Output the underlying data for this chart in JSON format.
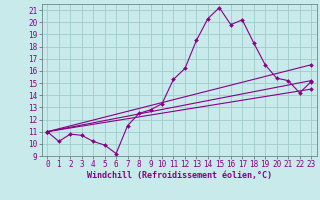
{
  "title": "",
  "xlabel": "Windchill (Refroidissement éolien,°C)",
  "xlim": [
    -0.5,
    23.5
  ],
  "ylim": [
    9,
    21.5
  ],
  "xticks": [
    0,
    1,
    2,
    3,
    4,
    5,
    6,
    7,
    8,
    9,
    10,
    11,
    12,
    13,
    14,
    15,
    16,
    17,
    18,
    19,
    20,
    21,
    22,
    23
  ],
  "yticks": [
    9,
    10,
    11,
    12,
    13,
    14,
    15,
    16,
    17,
    18,
    19,
    20,
    21
  ],
  "bg_color": "#c8eaea",
  "grid_color": "#a0cccc",
  "line_color": "#880088",
  "main_series": [
    [
      0,
      11.0
    ],
    [
      1,
      10.2
    ],
    [
      2,
      10.8
    ],
    [
      3,
      10.7
    ],
    [
      4,
      10.2
    ],
    [
      5,
      9.9
    ],
    [
      6,
      9.2
    ],
    [
      7,
      11.5
    ],
    [
      8,
      12.5
    ],
    [
      9,
      12.8
    ],
    [
      10,
      13.3
    ],
    [
      11,
      15.3
    ],
    [
      12,
      16.2
    ],
    [
      13,
      18.5
    ],
    [
      14,
      20.3
    ],
    [
      15,
      21.2
    ],
    [
      16,
      19.8
    ],
    [
      17,
      20.2
    ],
    [
      18,
      18.3
    ],
    [
      19,
      16.5
    ],
    [
      20,
      15.4
    ],
    [
      21,
      15.2
    ],
    [
      22,
      14.2
    ],
    [
      23,
      15.1
    ]
  ],
  "straight_lines": [
    [
      [
        0,
        11.0
      ],
      [
        23,
        16.5
      ]
    ],
    [
      [
        0,
        11.0
      ],
      [
        23,
        15.2
      ]
    ],
    [
      [
        0,
        11.0
      ],
      [
        23,
        14.5
      ]
    ]
  ],
  "marker_size": 2.0,
  "line_width": 0.8,
  "tick_fontsize": 5.5,
  "xlabel_fontsize": 6.0
}
